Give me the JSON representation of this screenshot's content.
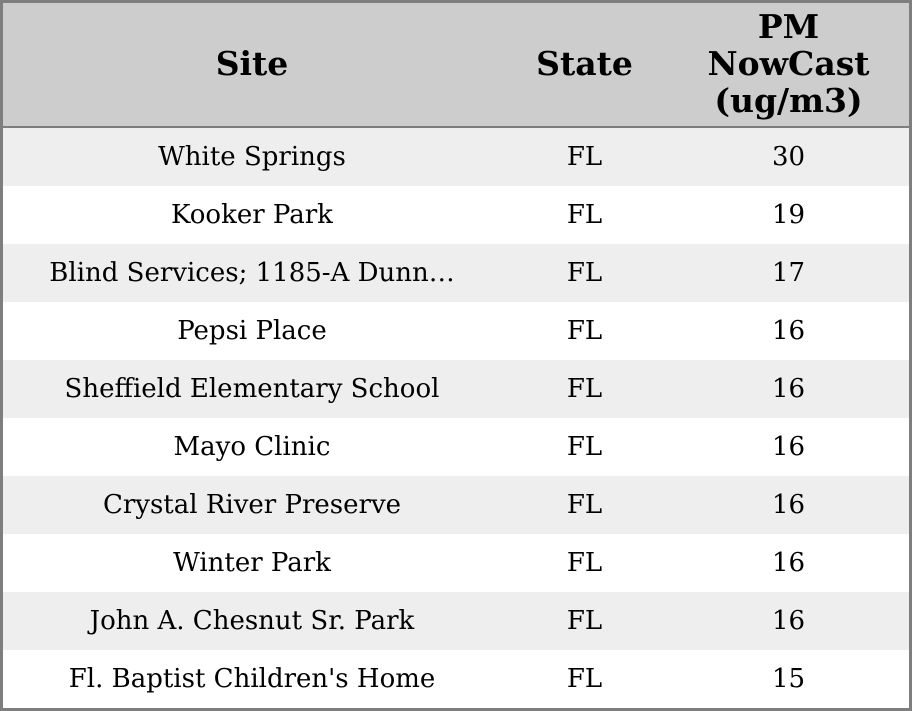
{
  "colors": {
    "header_bg": "#cdcdcd",
    "row_stripe": "#eeeeee",
    "row_plain": "#ffffff",
    "border": "#7e7e7e",
    "text": "#000000"
  },
  "table": {
    "columns": [
      {
        "key": "site",
        "label": "Site"
      },
      {
        "key": "state",
        "label": "State"
      },
      {
        "key": "pm_nowcast",
        "label": "PM NowCast (ug/m3)",
        "label_lines": [
          "PM",
          "NowCast",
          "(ug/m3)"
        ]
      }
    ],
    "rows": [
      {
        "site": "White Springs",
        "state": "FL",
        "pm_nowcast": 30
      },
      {
        "site": "Kooker Park",
        "state": "FL",
        "pm_nowcast": 19
      },
      {
        "site": "Blind Services; 1185-A Dunn…",
        "state": "FL",
        "pm_nowcast": 17
      },
      {
        "site": "Pepsi Place",
        "state": "FL",
        "pm_nowcast": 16
      },
      {
        "site": "Sheffield Elementary School",
        "state": "FL",
        "pm_nowcast": 16
      },
      {
        "site": "Mayo Clinic",
        "state": "FL",
        "pm_nowcast": 16
      },
      {
        "site": "Crystal River Preserve",
        "state": "FL",
        "pm_nowcast": 16
      },
      {
        "site": "Winter Park",
        "state": "FL",
        "pm_nowcast": 16
      },
      {
        "site": "John A. Chesnut Sr. Park",
        "state": "FL",
        "pm_nowcast": 16
      },
      {
        "site": "Fl. Baptist Children's Home",
        "state": "FL",
        "pm_nowcast": 15
      }
    ]
  },
  "chart_data": {
    "type": "table",
    "title": "",
    "columns": [
      "Site",
      "State",
      "PM NowCast (ug/m3)"
    ],
    "rows": [
      [
        "White Springs",
        "FL",
        30
      ],
      [
        "Kooker Park",
        "FL",
        19
      ],
      [
        "Blind Services; 1185-A Dunn…",
        "FL",
        17
      ],
      [
        "Pepsi Place",
        "FL",
        16
      ],
      [
        "Sheffield Elementary School",
        "FL",
        16
      ],
      [
        "Mayo Clinic",
        "FL",
        16
      ],
      [
        "Crystal River Preserve",
        "FL",
        16
      ],
      [
        "Winter Park",
        "FL",
        16
      ],
      [
        "John A. Chesnut Sr. Park",
        "FL",
        16
      ],
      [
        "Fl. Baptist Children's Home",
        "FL",
        15
      ]
    ],
    "notes": "Zebra-striped static table; all rows state FL; values sorted descending"
  }
}
